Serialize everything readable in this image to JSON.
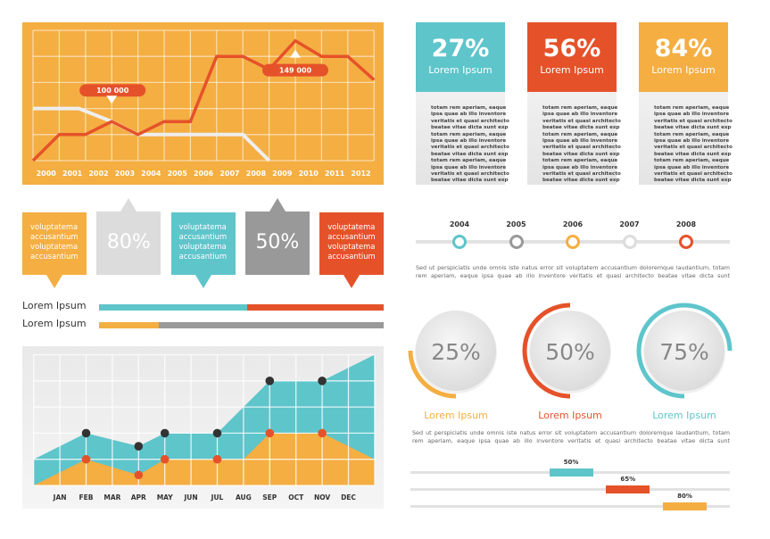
{
  "colors": {
    "orange": "#F4AE42",
    "red": "#E5522A",
    "teal": "#5EC5CB",
    "gray": "#999999",
    "light_gray": "#DCDCDC",
    "dark": "#333333"
  },
  "chart_data": [
    {
      "type": "line",
      "x_tick_labels": [
        "2000",
        "2001",
        "2002",
        "2003",
        "2004",
        "2005",
        "2006",
        "2007",
        "2008",
        "2009",
        "2010",
        "2011",
        "2012"
      ],
      "grid": true,
      "ylim": [
        0,
        5
      ],
      "series": [
        {
          "color": "#E5522A",
          "points": [
            [
              0,
              0
            ],
            [
              1,
              1
            ],
            [
              2,
              1
            ],
            [
              3,
              1.5
            ],
            [
              4,
              1
            ],
            [
              5,
              1.5
            ],
            [
              6,
              1.5
            ],
            [
              7,
              4
            ],
            [
              8,
              4
            ],
            [
              9,
              3.5
            ],
            [
              10,
              4.6
            ],
            [
              11,
              4
            ],
            [
              12,
              4
            ],
            [
              13,
              3.1
            ]
          ]
        },
        {
          "color": "#EEEEEE",
          "points": [
            [
              0,
              2
            ],
            [
              1.75,
              2
            ],
            [
              3,
              1.5
            ],
            [
              4,
              1
            ],
            [
              8,
              1
            ],
            [
              9,
              0
            ]
          ]
        }
      ],
      "annotations": [
        {
          "text": "100 000",
          "at": [
            3,
            1.5
          ],
          "pointer": "down"
        },
        {
          "text": "149 000",
          "at": [
            10,
            4.6
          ],
          "pointer": "up"
        }
      ]
    },
    {
      "type": "area",
      "x_tick_labels": [
        "JAN",
        "FEB",
        "MAR",
        "APR",
        "MAY",
        "JUN",
        "JUL",
        "AUG",
        "SEP",
        "OCT",
        "NOV",
        "DEC"
      ],
      "grid": true,
      "ylim": [
        0,
        5
      ],
      "series": [
        {
          "color": "#5EC5CB",
          "points": [
            [
              0,
              1
            ],
            [
              2,
              2
            ],
            [
              4,
              1.5
            ],
            [
              5,
              2
            ],
            [
              7,
              2
            ],
            [
              8,
              3
            ],
            [
              9,
              4
            ],
            [
              11,
              4
            ],
            [
              13,
              5
            ]
          ],
          "markers": [
            2,
            4,
            5,
            7,
            9,
            11
          ]
        },
        {
          "color": "#F4AE42",
          "points": [
            [
              0,
              0
            ],
            [
              2,
              1
            ],
            [
              4,
              0.4
            ],
            [
              5,
              1
            ],
            [
              7,
              1
            ],
            [
              8,
              1
            ],
            [
              9,
              2
            ],
            [
              11,
              2
            ],
            [
              13,
              1
            ]
          ],
          "markers": [
            2,
            4,
            5,
            7,
            9,
            11
          ]
        }
      ]
    }
  ],
  "stat_cards": [
    {
      "pct": "27%",
      "label": "Lorem Ipsum",
      "color": "#5EC5CB"
    },
    {
      "pct": "56%",
      "label": "Lorem Ipsum",
      "color": "#E5522A"
    },
    {
      "pct": "84%",
      "label": "Lorem Ipsum",
      "color": "#F4AE42"
    }
  ],
  "card_text": "totam rem aperiam, eaque\nipsa quae ab illo inventore\nveritatis et quasi architecto\nbeatae vitae dicta sunt exp\ntotam rem aperiam, eaque\nipsa quae ab illo inventore\nveritatis et quasi architecto\nbeatae vitae dicta sunt exp\ntotam rem aperiam, eaque\nipsa quae ab illo inventore\nveritatis et quasi architecto\nbeatae vitae dicta sunt exp",
  "speech_boxes": [
    {
      "text": "voluptatema\naccusantium\nvoluptatema\naccusantium",
      "color": "#F4AE42"
    },
    {
      "pct": "80%",
      "color": "#DCDCDC"
    },
    {
      "text": "voluptatema\naccusantium\nvoluptatema\naccusantium",
      "color": "#5EC5CB"
    },
    {
      "pct": "50%",
      "color": "#999999"
    },
    {
      "text": "voluptatema\naccusantium\nvoluptatema\naccusantium",
      "color": "#E5522A"
    }
  ],
  "split_bars": [
    {
      "label": "Lorem Ipsum",
      "fraction": 0.52,
      "colors": [
        "#5EC5CB",
        "#E5522A"
      ]
    },
    {
      "label": "Lorem Ipsum",
      "fraction": 0.21,
      "colors": [
        "#F4AE42",
        "#999999"
      ]
    }
  ],
  "timeline": [
    {
      "year": "2004",
      "color": "#5EC5CB"
    },
    {
      "year": "2005",
      "color": "#999999"
    },
    {
      "year": "2006",
      "color": "#F4AE42"
    },
    {
      "year": "2007",
      "color": "#DCDCDC"
    },
    {
      "year": "2008",
      "color": "#E5522A"
    }
  ],
  "paragraph": "Sed ut perspiciatis unde omnis iste natus error sit voluptatem accusantium doloremque laudantium, totam rem aperiam, eaque ipsa quae ab illo inventore veritatis et quasi architecto beatae vitae dicta sunt",
  "circles": [
    {
      "pct": "25%",
      "value": 25,
      "label": "Lorem Ipsum",
      "color": "#F4AE42"
    },
    {
      "pct": "50%",
      "value": 50,
      "label": "Lorem Ipsum",
      "color": "#E5522A"
    },
    {
      "pct": "75%",
      "value": 75,
      "label": "Lorem Ipsum",
      "color": "#5EC5CB"
    }
  ],
  "progress": [
    {
      "label": "50%",
      "value": 50,
      "color": "#5EC5CB"
    },
    {
      "label": "65%",
      "value": 65,
      "color": "#E5522A"
    },
    {
      "label": "80%",
      "value": 80,
      "color": "#F4AE42"
    }
  ]
}
